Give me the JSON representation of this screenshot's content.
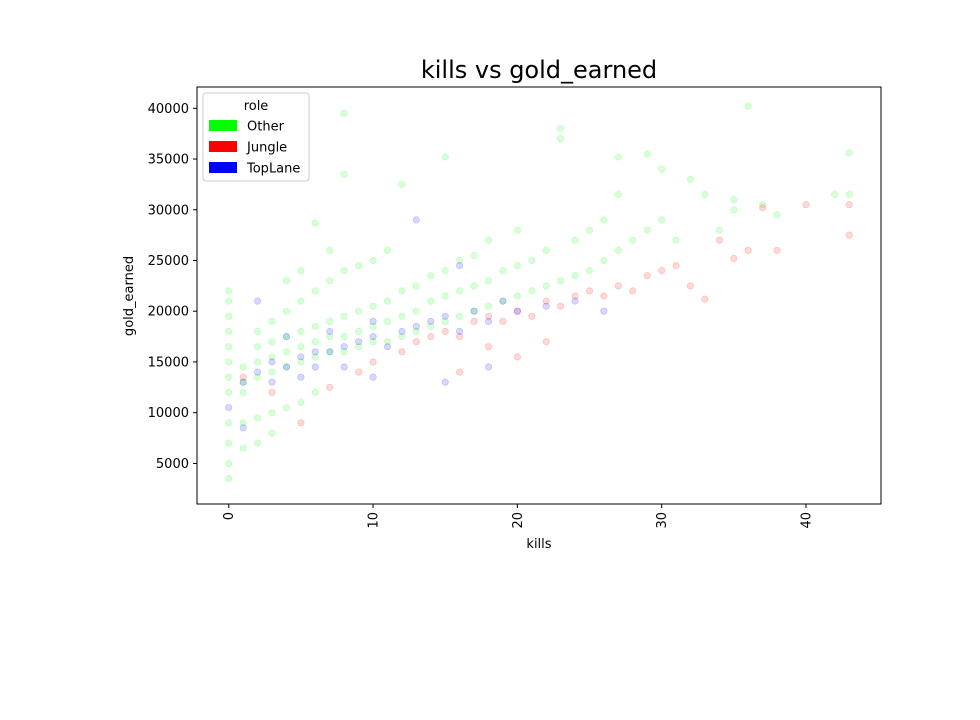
{
  "chart_data": {
    "type": "scatter",
    "title": "kills vs gold_earned",
    "xlabel": "kills",
    "ylabel": "gold_earned",
    "xlim": [
      -2.2,
      45.2
    ],
    "ylim": [
      1000,
      42100
    ],
    "x_ticks": [
      0,
      10,
      20,
      30,
      40
    ],
    "x_tick_labels": [
      "0",
      "10",
      "20",
      "30",
      "40"
    ],
    "y_ticks": [
      5000,
      10000,
      15000,
      20000,
      25000,
      30000,
      35000,
      40000
    ],
    "y_tick_labels": [
      "5000",
      "10000",
      "15000",
      "20000",
      "25000",
      "30000",
      "35000",
      "40000"
    ],
    "x_tick_label_rotation": "vertical",
    "grid": false,
    "legend": {
      "title": "role",
      "placement": "upper-left",
      "entries": [
        {
          "label": "Other",
          "color": "#00ff00"
        },
        {
          "label": "Jungle",
          "color": "#ff0000"
        },
        {
          "label": "TopLane",
          "color": "#0000ff"
        }
      ]
    },
    "marker_opacity": 0.07,
    "series": [
      {
        "name": "Other",
        "color": "#00ff00",
        "note_points": [
          [
            0,
            12000
          ],
          [
            0,
            13500
          ],
          [
            0,
            15000
          ],
          [
            0,
            16500
          ],
          [
            0,
            18000
          ],
          [
            0,
            19500
          ],
          [
            0,
            21000
          ],
          [
            0,
            22000
          ],
          [
            0,
            9000
          ],
          [
            0,
            7000
          ],
          [
            0,
            5000
          ],
          [
            0,
            3500
          ],
          [
            1,
            12000
          ],
          [
            1,
            13000
          ],
          [
            1,
            14500
          ],
          [
            1,
            9000
          ],
          [
            1,
            6500
          ],
          [
            2,
            13500
          ],
          [
            2,
            15000
          ],
          [
            2,
            16500
          ],
          [
            2,
            18000
          ],
          [
            2,
            9500
          ],
          [
            2,
            7000
          ],
          [
            3,
            14000
          ],
          [
            3,
            15500
          ],
          [
            3,
            17000
          ],
          [
            3,
            19000
          ],
          [
            3,
            10000
          ],
          [
            3,
            8000
          ],
          [
            4,
            14500
          ],
          [
            4,
            16000
          ],
          [
            4,
            17500
          ],
          [
            4,
            20000
          ],
          [
            4,
            23000
          ],
          [
            4,
            10500
          ],
          [
            5,
            15000
          ],
          [
            5,
            16500
          ],
          [
            5,
            18000
          ],
          [
            5,
            21000
          ],
          [
            5,
            24000
          ],
          [
            5,
            11000
          ],
          [
            6,
            15500
          ],
          [
            6,
            17000
          ],
          [
            6,
            18500
          ],
          [
            6,
            22000
          ],
          [
            6,
            28700
          ],
          [
            6,
            12000
          ],
          [
            7,
            16000
          ],
          [
            7,
            17500
          ],
          [
            7,
            19000
          ],
          [
            7,
            23000
          ],
          [
            7,
            26000
          ],
          [
            8,
            16000
          ],
          [
            8,
            17500
          ],
          [
            8,
            19500
          ],
          [
            8,
            24000
          ],
          [
            8,
            39500
          ],
          [
            8,
            33500
          ],
          [
            9,
            16500
          ],
          [
            9,
            18000
          ],
          [
            9,
            20000
          ],
          [
            9,
            24500
          ],
          [
            10,
            17000
          ],
          [
            10,
            18500
          ],
          [
            10,
            20500
          ],
          [
            10,
            25000
          ],
          [
            11,
            17000
          ],
          [
            11,
            19000
          ],
          [
            11,
            21000
          ],
          [
            11,
            26000
          ],
          [
            12,
            17500
          ],
          [
            12,
            19500
          ],
          [
            12,
            22000
          ],
          [
            12,
            32500
          ],
          [
            13,
            18000
          ],
          [
            13,
            20000
          ],
          [
            13,
            22500
          ],
          [
            14,
            18500
          ],
          [
            14,
            21000
          ],
          [
            14,
            23500
          ],
          [
            15,
            19000
          ],
          [
            15,
            21500
          ],
          [
            15,
            24000
          ],
          [
            15,
            35200
          ],
          [
            16,
            19500
          ],
          [
            16,
            22000
          ],
          [
            16,
            25000
          ],
          [
            17,
            20000
          ],
          [
            17,
            22500
          ],
          [
            17,
            25500
          ],
          [
            18,
            20500
          ],
          [
            18,
            23000
          ],
          [
            18,
            27000
          ],
          [
            19,
            21000
          ],
          [
            19,
            24000
          ],
          [
            20,
            21500
          ],
          [
            20,
            24500
          ],
          [
            20,
            28000
          ],
          [
            21,
            22000
          ],
          [
            21,
            25000
          ],
          [
            22,
            22500
          ],
          [
            22,
            26000
          ],
          [
            23,
            23000
          ],
          [
            23,
            37000
          ],
          [
            23,
            38000
          ],
          [
            24,
            23500
          ],
          [
            24,
            27000
          ],
          [
            25,
            24000
          ],
          [
            25,
            28000
          ],
          [
            26,
            25000
          ],
          [
            26,
            29000
          ],
          [
            27,
            26000
          ],
          [
            27,
            31500
          ],
          [
            27,
            35200
          ],
          [
            28,
            27000
          ],
          [
            29,
            28000
          ],
          [
            29,
            35500
          ],
          [
            30,
            29000
          ],
          [
            30,
            34000
          ],
          [
            31,
            27000
          ],
          [
            32,
            33000
          ],
          [
            33,
            31500
          ],
          [
            34,
            28000
          ],
          [
            35,
            30000
          ],
          [
            35,
            31000
          ],
          [
            36,
            40200
          ],
          [
            37,
            30500
          ],
          [
            38,
            29500
          ],
          [
            43,
            35600
          ],
          [
            43,
            31500
          ],
          [
            42,
            31500
          ]
        ]
      },
      {
        "name": "Jungle",
        "color": "#ff0000",
        "note_points": [
          [
            1,
            13500
          ],
          [
            3,
            12000
          ],
          [
            5,
            9000
          ],
          [
            7,
            12500
          ],
          [
            9,
            14000
          ],
          [
            10,
            15000
          ],
          [
            12,
            16000
          ],
          [
            13,
            17000
          ],
          [
            14,
            17500
          ],
          [
            15,
            18000
          ],
          [
            16,
            17500
          ],
          [
            17,
            19000
          ],
          [
            18,
            19500
          ],
          [
            19,
            19000
          ],
          [
            20,
            20000
          ],
          [
            21,
            19500
          ],
          [
            22,
            21000
          ],
          [
            23,
            20500
          ],
          [
            24,
            21500
          ],
          [
            25,
            22000
          ],
          [
            26,
            21500
          ],
          [
            27,
            22500
          ],
          [
            28,
            22000
          ],
          [
            29,
            23500
          ],
          [
            30,
            24000
          ],
          [
            31,
            24500
          ],
          [
            32,
            22500
          ],
          [
            33,
            21200
          ],
          [
            34,
            27000
          ],
          [
            35,
            25200
          ],
          [
            36,
            26000
          ],
          [
            37,
            30200
          ],
          [
            38,
            26000
          ],
          [
            40,
            30500
          ],
          [
            43,
            30500
          ],
          [
            43,
            27500
          ],
          [
            20,
            15500
          ],
          [
            22,
            17000
          ],
          [
            16,
            14000
          ],
          [
            18,
            16500
          ]
        ]
      },
      {
        "name": "TopLane",
        "color": "#0000ff",
        "note_points": [
          [
            0,
            10500
          ],
          [
            1,
            13000
          ],
          [
            1,
            8500
          ],
          [
            2,
            14000
          ],
          [
            2,
            21000
          ],
          [
            3,
            15000
          ],
          [
            3,
            13000
          ],
          [
            4,
            14500
          ],
          [
            4,
            17500
          ],
          [
            5,
            15500
          ],
          [
            5,
            13500
          ],
          [
            6,
            16000
          ],
          [
            6,
            14500
          ],
          [
            7,
            16000
          ],
          [
            7,
            18000
          ],
          [
            8,
            16500
          ],
          [
            8,
            14500
          ],
          [
            9,
            17000
          ],
          [
            10,
            17500
          ],
          [
            10,
            19000
          ],
          [
            11,
            16500
          ],
          [
            12,
            18000
          ],
          [
            13,
            18500
          ],
          [
            14,
            19000
          ],
          [
            15,
            19500
          ],
          [
            16,
            18000
          ],
          [
            17,
            20000
          ],
          [
            18,
            19000
          ],
          [
            19,
            21000
          ],
          [
            20,
            20000
          ],
          [
            22,
            20500
          ],
          [
            24,
            21000
          ],
          [
            26,
            20000
          ],
          [
            13,
            29000
          ],
          [
            16,
            24500
          ],
          [
            15,
            13000
          ],
          [
            18,
            14500
          ],
          [
            10,
            13500
          ]
        ]
      }
    ]
  }
}
